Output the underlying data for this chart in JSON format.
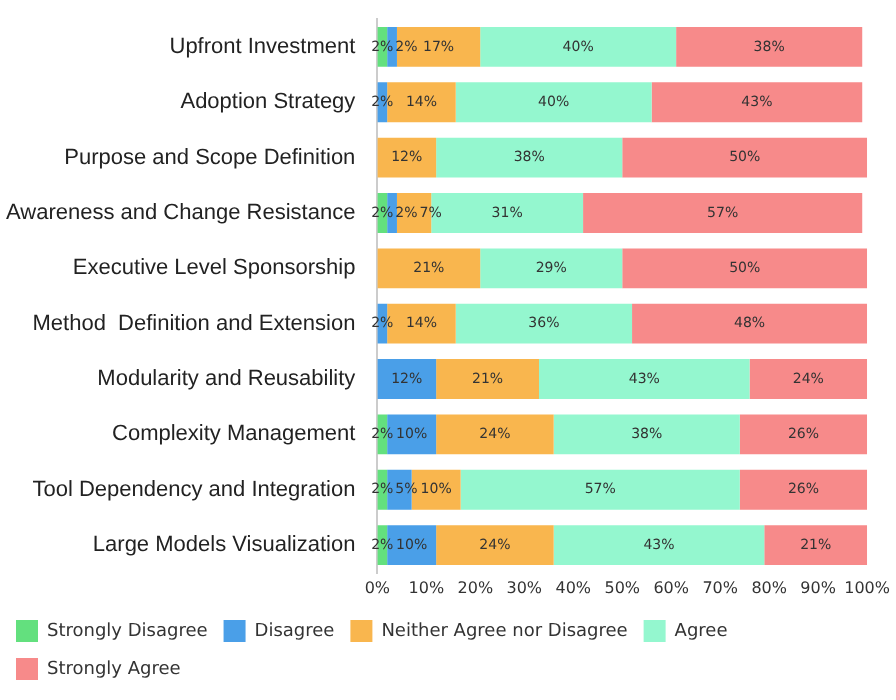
{
  "chart_data": {
    "type": "bar",
    "orientation": "horizontal",
    "stacked": true,
    "categories": [
      "Upfront Investment",
      "Adoption Strategy",
      "Purpose and Scope Definition",
      "Awareness and Change Resistance",
      "Executive Level Sponsorship",
      "Method  Definition and Extension",
      "Modularity and Reusability",
      "Complexity Management",
      "Tool Dependency and Integration",
      "Large Models Visualization"
    ],
    "series": [
      {
        "name": "Strongly Disagree",
        "color": "#63e07e",
        "values": [
          2,
          null,
          null,
          2,
          null,
          null,
          null,
          2,
          2,
          2
        ],
        "value_labels": [
          "2%",
          null,
          null,
          "2%",
          null,
          null,
          null,
          "2%",
          "2%",
          "2%"
        ]
      },
      {
        "name": "Disagree",
        "color": "#4a9fe8",
        "values": [
          2,
          2,
          null,
          2,
          null,
          2,
          12,
          10,
          5,
          10
        ],
        "value_labels": [
          "2%",
          "2%",
          null,
          "2%",
          null,
          "2%",
          "12%",
          "10%",
          "5%",
          "10%"
        ]
      },
      {
        "name": "Neither Agree nor Disagree",
        "color": "#f9b64e",
        "values": [
          17,
          14,
          12,
          7,
          21,
          14,
          21,
          24,
          10,
          24
        ],
        "value_labels": [
          "17%",
          "14%",
          "12%",
          "7%",
          "21%",
          "14%",
          "21%",
          "24%",
          "10%",
          "24%"
        ]
      },
      {
        "name": "Agree",
        "color": "#94f7cf",
        "values": [
          40,
          40,
          38,
          31,
          29,
          36,
          43,
          38,
          57,
          43
        ],
        "value_labels": [
          "40%",
          "40%",
          "38%",
          "31%",
          "29%",
          "36%",
          "43%",
          "38%",
          "57%",
          "43%"
        ]
      },
      {
        "name": "Strongly Agree",
        "color": "#f78a8a",
        "values": [
          38,
          43,
          50,
          57,
          50,
          48,
          24,
          26,
          26,
          21
        ],
        "value_labels": [
          "38%",
          "43%",
          "50%",
          "57%",
          "50%",
          "48%",
          "24%",
          "26%",
          "26%",
          "21%"
        ]
      }
    ],
    "xlim": [
      0,
      100
    ],
    "xticks": [
      {
        "value": 0,
        "label": "0%"
      },
      {
        "value": 10,
        "label": "10%"
      },
      {
        "value": 20,
        "label": "20%"
      },
      {
        "value": 30,
        "label": "30%"
      },
      {
        "value": 40,
        "label": "40%"
      },
      {
        "value": 50,
        "label": "50%"
      },
      {
        "value": 60,
        "label": "60%"
      },
      {
        "value": 70,
        "label": "70%"
      },
      {
        "value": 80,
        "label": "80%"
      },
      {
        "value": 90,
        "label": "90%"
      },
      {
        "value": 100,
        "label": "100%"
      }
    ],
    "grid": false,
    "legend": "bottom"
  }
}
